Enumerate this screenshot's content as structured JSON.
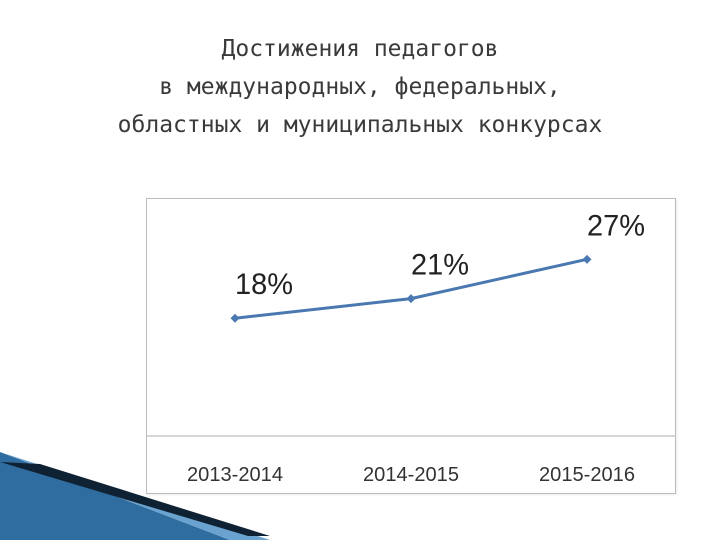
{
  "slide": {
    "title_lines": [
      "Достижения педагогов",
      "в международных, федеральных,",
      "областных  и муниципальных конкурсах"
    ]
  },
  "colors": {
    "line": "#4a78b0",
    "title": "#3a3a3a",
    "decoration_blue": "#2f6da1",
    "decoration_dark": "#0f2233"
  },
  "chart_data": {
    "type": "line",
    "categories": [
      "2013-2014",
      "2014-2015",
      "2015-2016"
    ],
    "series": [
      {
        "values": [
          18,
          21,
          27
        ],
        "data_labels": [
          "18%",
          "21%",
          "27%"
        ]
      }
    ],
    "ylim": [
      0,
      35
    ],
    "grid": false,
    "legend": "none"
  }
}
